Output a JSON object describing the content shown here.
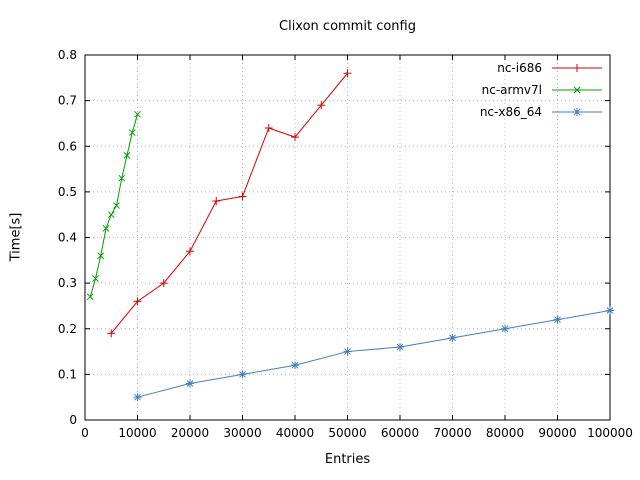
{
  "chart_data": {
    "type": "line",
    "title": "Clixon commit config",
    "xlabel": "Entries",
    "ylabel": "Time[s]",
    "xlim": [
      0,
      100000
    ],
    "ylim": [
      0,
      0.8
    ],
    "xticks": [
      0,
      10000,
      20000,
      30000,
      40000,
      50000,
      60000,
      70000,
      80000,
      90000,
      100000
    ],
    "yticks": [
      0,
      0.1,
      0.2,
      0.3,
      0.4,
      0.5,
      0.6,
      0.7,
      0.8
    ],
    "grid": true,
    "legend_position": "top-right",
    "colors": {
      "grid": "#b8b8b8",
      "border": "#000000",
      "red": "#dd0000",
      "green": "#00a000",
      "blue": "#4080c0"
    },
    "series": [
      {
        "name": "nc-i686",
        "color": "#dd0000",
        "marker": "plus",
        "x": [
          5000,
          10000,
          15000,
          20000,
          25000,
          30000,
          35000,
          40000,
          45000,
          50000
        ],
        "y": [
          0.19,
          0.26,
          0.3,
          0.37,
          0.48,
          0.49,
          0.64,
          0.62,
          0.69,
          0.76
        ]
      },
      {
        "name": "nc-armv7l",
        "color": "#00a000",
        "marker": "cross",
        "x": [
          1000,
          2000,
          3000,
          4000,
          5000,
          6000,
          7000,
          8000,
          9000,
          10000
        ],
        "y": [
          0.27,
          0.31,
          0.36,
          0.42,
          0.45,
          0.47,
          0.53,
          0.58,
          0.63,
          0.67
        ]
      },
      {
        "name": "nc-x86_64",
        "color": "#4080c0",
        "marker": "star",
        "x": [
          10000,
          20000,
          30000,
          40000,
          50000,
          60000,
          70000,
          80000,
          90000,
          100000
        ],
        "y": [
          0.05,
          0.08,
          0.1,
          0.12,
          0.15,
          0.16,
          0.18,
          0.2,
          0.22,
          0.24
        ]
      }
    ]
  }
}
